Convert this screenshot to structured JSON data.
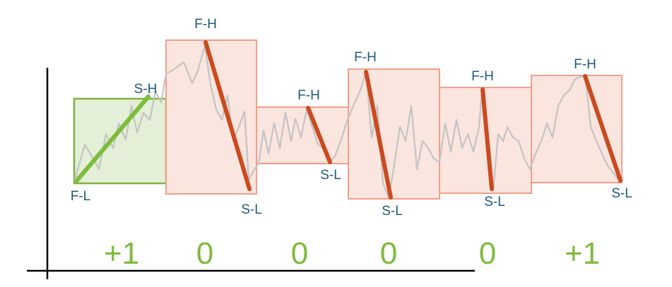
{
  "colors": {
    "axis": "#000000",
    "price_line": "#c4c4c4",
    "up_box_fill": "#e3efd6",
    "up_box_stroke": "#7fb241",
    "up_trend": "#7cbd3a",
    "down_box_fill": "#fbe5df",
    "down_box_stroke": "#f0a08a",
    "down_trend": "#cb4a1e",
    "label_text": "#1f5a78",
    "score_text": "#7dbb3c"
  },
  "segments": [
    {
      "direction": "up",
      "first_point": "F-L",
      "second_point": "S-H",
      "score": "+1"
    },
    {
      "direction": "down",
      "first_point": "F-H",
      "second_point": "S-L",
      "score": "0"
    },
    {
      "direction": "down",
      "first_point": "F-H",
      "second_point": "S-L",
      "score": "0"
    },
    {
      "direction": "down",
      "first_point": "F-H",
      "second_point": "S-L",
      "score": "0"
    },
    {
      "direction": "down",
      "first_point": "F-H",
      "second_point": "S-L",
      "score": "0"
    },
    {
      "direction": "down",
      "first_point": "F-H",
      "second_point": "S-L",
      "score": "+1"
    }
  ]
}
